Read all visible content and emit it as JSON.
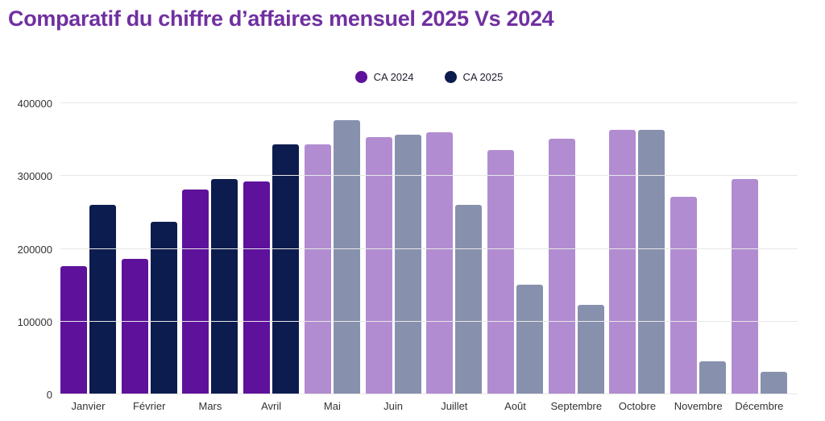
{
  "title": "Comparatif du chiffre d’affaires mensuel 2025 Vs 2024",
  "legend": [
    {
      "label": "CA 2024",
      "color": "#5E119B"
    },
    {
      "label": "CA 2025",
      "color": "#0D1C4E"
    }
  ],
  "chart_data": {
    "type": "bar",
    "title": "Comparatif du chiffre d’affaires mensuel 2025 Vs 2024",
    "categories": [
      "Janvier",
      "Février",
      "Mars",
      "Avril",
      "Mai",
      "Juin",
      "Juillet",
      "Août",
      "Septembre",
      "Octobre",
      "Novembre",
      "Décembre"
    ],
    "series": [
      {
        "name": "CA 2024",
        "values": [
          176000,
          186000,
          281000,
          293000,
          343000,
          353000,
          360000,
          336000,
          351000,
          364000,
          272000,
          296000
        ]
      },
      {
        "name": "CA 2025",
        "values": [
          260000,
          237000,
          296000,
          343000,
          377000,
          357000,
          260000,
          151000,
          123000,
          364000,
          46000,
          31000
        ]
      }
    ],
    "xlabel": "",
    "ylabel": "",
    "ylim": [
      0,
      400000
    ],
    "yticks": [
      0,
      100000,
      200000,
      300000,
      400000
    ],
    "grid": true,
    "legend_position": "top-center",
    "faded_from_index": 4,
    "colors": {
      "ca2024_solid": "#5E119B",
      "ca2025_solid": "#0D1C4E",
      "ca2024_faded": "#B28CD1",
      "ca2025_faded": "#8791AD",
      "gridline": "#e7e7e7",
      "title": "#7030A0"
    }
  }
}
